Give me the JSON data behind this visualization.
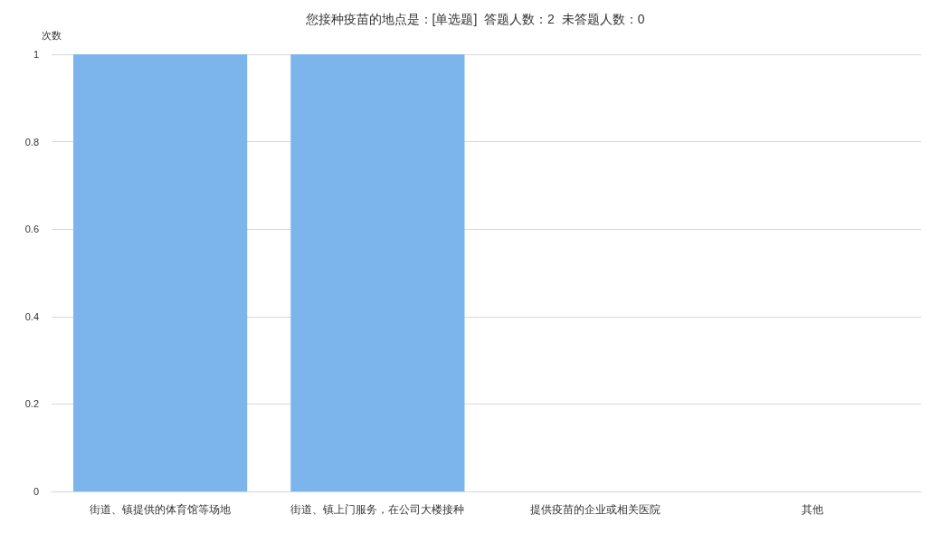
{
  "chart_data": {
    "type": "bar",
    "title": "您接种疫苗的地点是：[单选题]  答题人数：2  未答题人数：0",
    "ylabel": "次数",
    "categories": [
      "街道、镇提供的体育馆等场地",
      "街道、镇上门服务，在公司大楼接种",
      "提供疫苗的企业或相关医院",
      "其他"
    ],
    "values": [
      1,
      1,
      0,
      0
    ],
    "color": "#7cb5ec",
    "ylim": [
      0,
      1
    ],
    "yticks": [
      0,
      0.2,
      0.4,
      0.6,
      0.8,
      1
    ],
    "grid": "y"
  }
}
